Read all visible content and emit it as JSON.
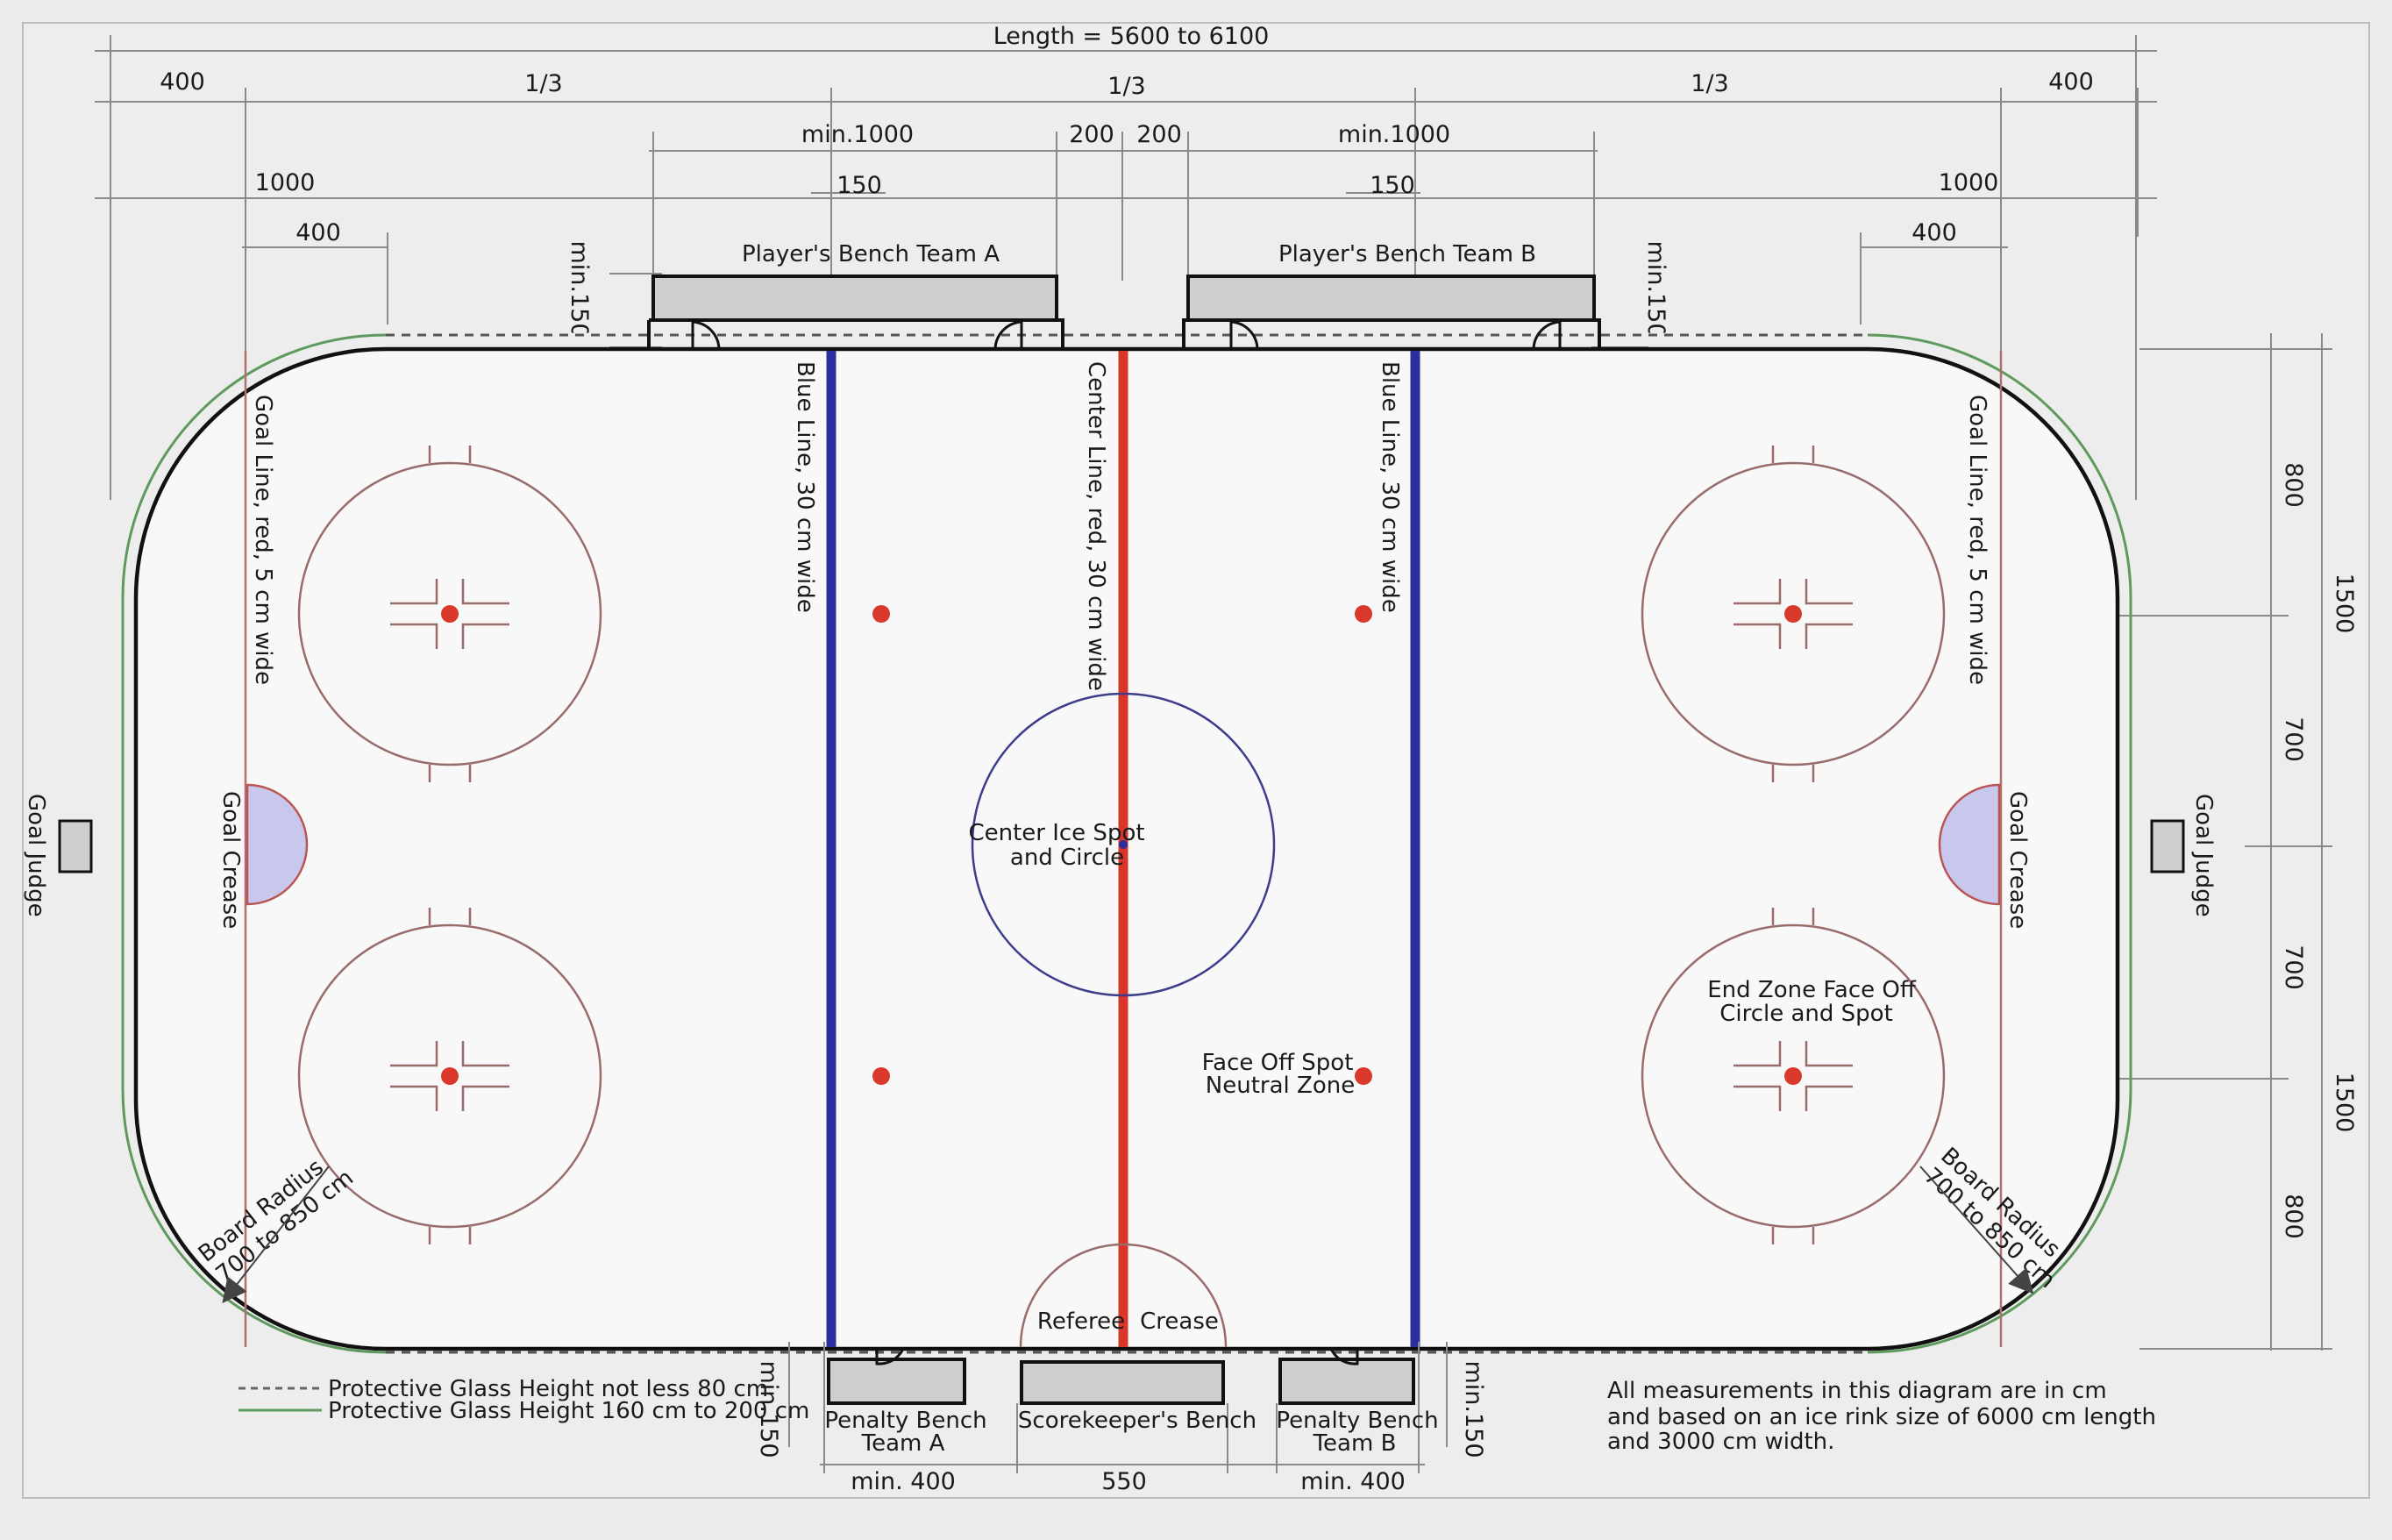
{
  "dimensions": {
    "length": "Length = 5600 to 6100",
    "third": "1/3",
    "end_400": "400",
    "end_1000": "1000",
    "bench_min1000": "min.1000",
    "gap_200": "200",
    "bench_150": "150",
    "bench_min150": "min.150",
    "right_800": "800",
    "right_700": "700",
    "right_1500": "1500",
    "penalty_min400": "min. 400",
    "scorekeeper_550": "550"
  },
  "benches": {
    "team_a": "Player's Bench Team A",
    "team_b": "Player's Bench Team B",
    "penalty_a_line1": "Penalty Bench",
    "penalty_a_line2": "Team A",
    "penalty_b_line1": "Penalty Bench",
    "penalty_b_line2": "Team B",
    "scorekeeper": "Scorekeeper's Bench"
  },
  "lines": {
    "blue_line": "Blue Line, 30 cm wide",
    "center_line": "Center Line, red, 30 cm wide",
    "goal_line": "Goal Line, red, 5 cm wide"
  },
  "labels": {
    "goal_judge": "Goal Judge",
    "goal_crease": "Goal Crease",
    "board_radius_line1": "Board Radius",
    "board_radius_line2": "700 to 850 cm",
    "center_ice_line1": "Center Ice Spot",
    "center_ice_line2": "and Circle",
    "face_off_line1": "Face Off Spot",
    "face_off_line2": "Neutral Zone",
    "end_zone_line1": "End Zone Face Off",
    "end_zone_line2": "Circle and Spot",
    "referee": "Referee",
    "crease": "Crease"
  },
  "legend": {
    "dashed": "Protective Glass Height   not less 80 cm",
    "solid": "Protective Glass Height 160 cm to 200 cm"
  },
  "note": {
    "line1": "All measurements in this diagram are in cm",
    "line2": "and based on an ice rink size of 6000   cm length",
    "line3": "and 3000  cm width."
  },
  "colors": {
    "blue_line": "#2b2f9e",
    "red_line": "#d8362b",
    "crease_fill": "#c8c8ec",
    "glass_green": "#5e9a5e",
    "bench_fill": "#cfcfcf",
    "spot_red": "#d9382a"
  }
}
